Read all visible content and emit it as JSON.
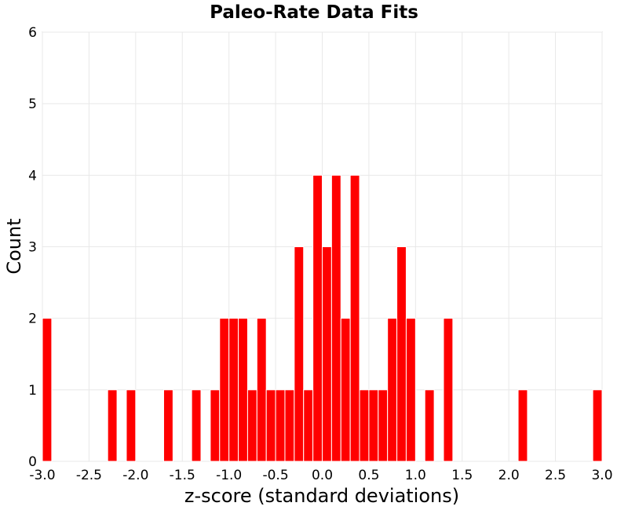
{
  "chart_data": {
    "type": "bar",
    "title": "Paleo-Rate Data Fits",
    "xlabel": "z-score (standard deviations)",
    "ylabel": "Count",
    "xlim": [
      -3.0,
      3.0
    ],
    "ylim": [
      0,
      6
    ],
    "bin_width": 0.1,
    "grid": true,
    "bar_color": "#ff0000",
    "x_ticks": [
      "-3.0",
      "-2.5",
      "-2.0",
      "-1.5",
      "-1.0",
      "-0.5",
      "0.0",
      "0.5",
      "1.0",
      "1.5",
      "2.0",
      "2.5",
      "3.0"
    ],
    "y_ticks": [
      "0",
      "1",
      "2",
      "3",
      "4",
      "5",
      "6"
    ],
    "bins": [
      {
        "x": -2.95,
        "count": 2
      },
      {
        "x": -2.25,
        "count": 1
      },
      {
        "x": -2.05,
        "count": 1
      },
      {
        "x": -1.65,
        "count": 1
      },
      {
        "x": -1.35,
        "count": 1
      },
      {
        "x": -1.15,
        "count": 1
      },
      {
        "x": -1.05,
        "count": 2
      },
      {
        "x": -0.95,
        "count": 2
      },
      {
        "x": -0.85,
        "count": 2
      },
      {
        "x": -0.75,
        "count": 1
      },
      {
        "x": -0.65,
        "count": 2
      },
      {
        "x": -0.55,
        "count": 1
      },
      {
        "x": -0.45,
        "count": 1
      },
      {
        "x": -0.35,
        "count": 1
      },
      {
        "x": -0.25,
        "count": 3
      },
      {
        "x": -0.15,
        "count": 1
      },
      {
        "x": -0.05,
        "count": 4
      },
      {
        "x": 0.05,
        "count": 3
      },
      {
        "x": 0.15,
        "count": 4
      },
      {
        "x": 0.25,
        "count": 2
      },
      {
        "x": 0.35,
        "count": 4
      },
      {
        "x": 0.45,
        "count": 1
      },
      {
        "x": 0.55,
        "count": 1
      },
      {
        "x": 0.65,
        "count": 1
      },
      {
        "x": 0.75,
        "count": 2
      },
      {
        "x": 0.85,
        "count": 3
      },
      {
        "x": 0.95,
        "count": 2
      },
      {
        "x": 1.15,
        "count": 1
      },
      {
        "x": 1.35,
        "count": 2
      },
      {
        "x": 2.15,
        "count": 1
      },
      {
        "x": 2.95,
        "count": 1
      }
    ]
  }
}
